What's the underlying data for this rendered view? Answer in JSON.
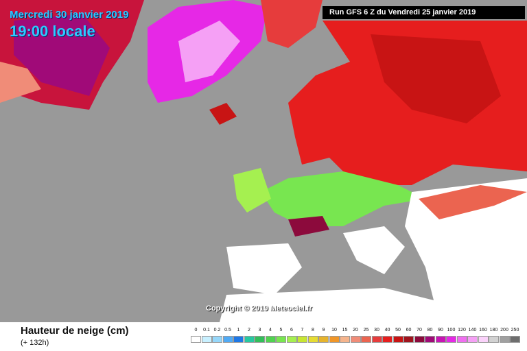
{
  "header": {
    "date": "Mercredi 30 janvier 2019",
    "time": "19:00 locale",
    "run": "Run GFS 6 Z du Vendredi 25 janvier 2019"
  },
  "copyright": "Copyright © 2019 Meteociel.fr",
  "legend": {
    "title": "Hauteur de neige (cm)",
    "subtitle": "(+ 132h)",
    "levels": [
      {
        "label": "0",
        "color": "#ffffff"
      },
      {
        "label": "0.1",
        "color": "#c8f0ff"
      },
      {
        "label": "0.2",
        "color": "#96d7fa"
      },
      {
        "label": "0.5",
        "color": "#50aaf5"
      },
      {
        "label": "1",
        "color": "#1e78e6"
      },
      {
        "label": "2",
        "color": "#28c8a0"
      },
      {
        "label": "3",
        "color": "#32be5a"
      },
      {
        "label": "4",
        "color": "#50d250"
      },
      {
        "label": "5",
        "color": "#78e650"
      },
      {
        "label": "6",
        "color": "#a5f050"
      },
      {
        "label": "7",
        "color": "#c8e632"
      },
      {
        "label": "8",
        "color": "#e6dc32"
      },
      {
        "label": "9",
        "color": "#e6b42d"
      },
      {
        "label": "10",
        "color": "#f09628"
      },
      {
        "label": "15",
        "color": "#f5b48c"
      },
      {
        "label": "20",
        "color": "#f08c78"
      },
      {
        "label": "25",
        "color": "#eb6450"
      },
      {
        "label": "30",
        "color": "#e63c3c"
      },
      {
        "label": "40",
        "color": "#e61e1e"
      },
      {
        "label": "50",
        "color": "#c81414"
      },
      {
        "label": "60",
        "color": "#a0141e"
      },
      {
        "label": "70",
        "color": "#8c0a3c"
      },
      {
        "label": "80",
        "color": "#a00a78"
      },
      {
        "label": "90",
        "color": "#c814b4"
      },
      {
        "label": "100",
        "color": "#e628e6"
      },
      {
        "label": "120",
        "color": "#f06ef0"
      },
      {
        "label": "140",
        "color": "#f5a0f5"
      },
      {
        "label": "160",
        "color": "#fad2fa"
      },
      {
        "label": "180",
        "color": "#d2d2d2"
      },
      {
        "label": "200",
        "color": "#a0a0a0"
      },
      {
        "label": "250",
        "color": "#6e6e6e"
      }
    ]
  }
}
